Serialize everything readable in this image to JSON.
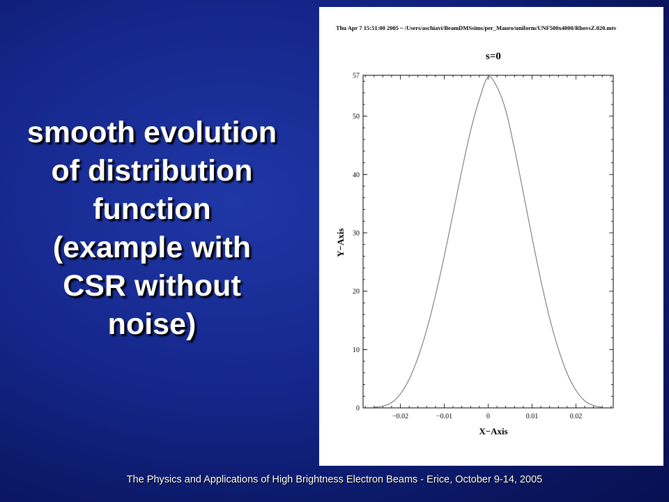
{
  "slide": {
    "title": "smooth evolution\nof distribution\nfunction\n(example with\nCSR without\nnoise)",
    "footer": "The Physics and Applications of High Brightness Electron Beams - Erice, October 9-14, 2005",
    "colors": {
      "background": "#14268a",
      "text": "#ffffff",
      "panel": "#ffffff"
    }
  },
  "chart_data": {
    "type": "line",
    "header": "Thu Apr  7 15:51:00 2005 ~ /Users/aschiavi/BeamDMSsims/per_Mauro/uniform/UNF500x4000/RhovsZ.020.mtv",
    "title": "s=0",
    "xlabel": "X−Axis",
    "ylabel": "Y−Axis",
    "xlim": [
      -0.0285,
      0.0285
    ],
    "ylim": [
      0,
      57
    ],
    "xticks": [
      -0.02,
      -0.01,
      0,
      0.01,
      0.02
    ],
    "xtick_labels": [
      "−0.02",
      "−0.01",
      "0",
      "0.01",
      "0.02"
    ],
    "yticks": [
      0,
      10,
      20,
      30,
      40,
      50,
      57
    ],
    "ytick_labels": [
      "0",
      "10",
      "20",
      "30",
      "40",
      "50",
      "57"
    ],
    "grid": false,
    "series": [
      {
        "x": [
          -0.026,
          -0.024,
          -0.022,
          -0.02,
          -0.018,
          -0.016,
          -0.014,
          -0.012,
          -0.01,
          -0.008,
          -0.006,
          -0.004,
          -0.002,
          0,
          0.002,
          0.004,
          0.006,
          0.008,
          0.01,
          0.012,
          0.014,
          0.016,
          0.018,
          0.02,
          0.022,
          0.024,
          0.026
        ],
        "y": [
          0.1,
          0.3,
          0.9,
          2.4,
          4.9,
          8.6,
          13.4,
          19.3,
          26.0,
          33.3,
          40.7,
          47.5,
          52.9,
          56.7,
          55.0,
          51.0,
          44.4,
          36.9,
          29.2,
          21.9,
          15.4,
          10.1,
          5.9,
          3.0,
          1.2,
          0.4,
          0.1
        ]
      }
    ]
  }
}
